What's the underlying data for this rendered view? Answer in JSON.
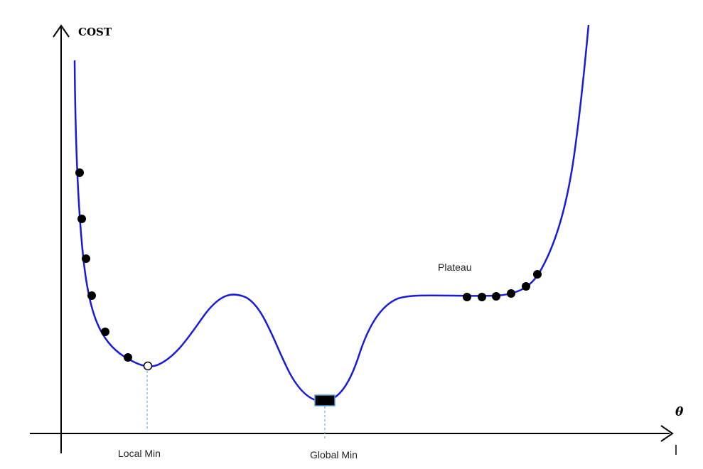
{
  "diagram": {
    "y_axis_label": "COST",
    "x_axis_label": "θ",
    "annotations": {
      "local_min": "Local Min",
      "global_min": "Global Min",
      "plateau": "Plateau"
    },
    "colors": {
      "curve": "#1a1adb",
      "axes": "#000000",
      "points": "#000000",
      "guide": "#5b9bd5"
    },
    "markers": {
      "descent_points_left": 6,
      "plateau_points": 6,
      "local_min_marker": "open-circle",
      "global_min_marker": "filled-square"
    }
  }
}
